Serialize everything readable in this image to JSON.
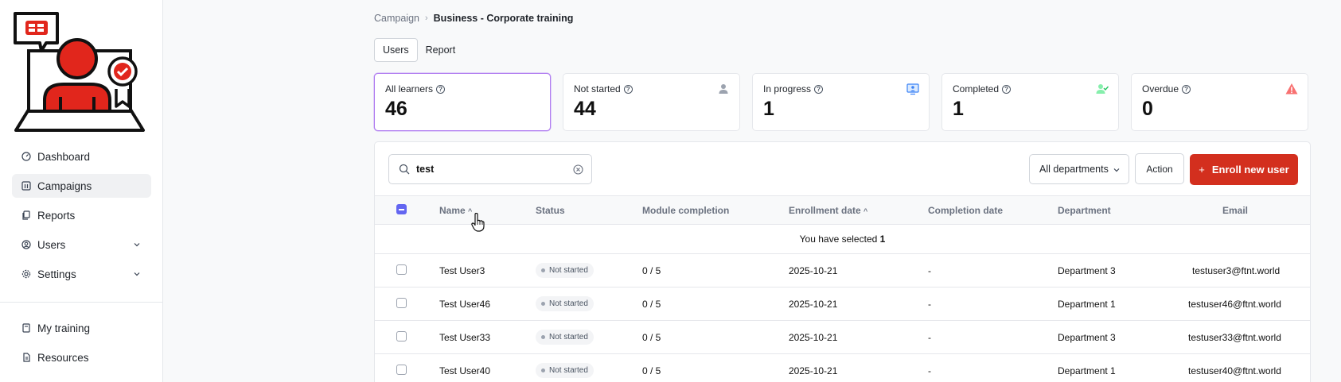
{
  "nav": {
    "items": [
      {
        "label": "Dashboard",
        "icon": "gauge-icon",
        "active": false
      },
      {
        "label": "Campaigns",
        "icon": "grid-icon",
        "active": true
      },
      {
        "label": "Reports",
        "icon": "document-icon",
        "active": false
      },
      {
        "label": "Users",
        "icon": "user-circle-icon",
        "active": false,
        "expandable": true
      },
      {
        "label": "Settings",
        "icon": "gear-icon",
        "active": false,
        "expandable": true
      }
    ],
    "bottom_items": [
      {
        "label": "My training",
        "icon": "book-icon"
      },
      {
        "label": "Resources",
        "icon": "file-icon"
      }
    ]
  },
  "breadcrumb": {
    "parent": "Campaign",
    "current": "Business - Corporate training"
  },
  "tabs": [
    {
      "label": "Users",
      "active": true
    },
    {
      "label": "Report",
      "active": false
    }
  ],
  "cards": [
    {
      "label": "All learners",
      "value": "46",
      "icon": ""
    },
    {
      "label": "Not started",
      "value": "44",
      "icon": "person-icon",
      "color": "#9ca3af"
    },
    {
      "label": "In progress",
      "value": "1",
      "icon": "monitor-user-icon",
      "color": "#3b82f6"
    },
    {
      "label": "Completed",
      "value": "1",
      "icon": "user-check-icon",
      "color": "#22c55e"
    },
    {
      "label": "Overdue",
      "value": "0",
      "icon": "warning-icon",
      "color": "#ef4444"
    }
  ],
  "search": {
    "value": "test"
  },
  "filters": {
    "department": "All departments"
  },
  "buttons": {
    "action": "Action",
    "enroll": "Enroll new user",
    "enroll_icon": "+"
  },
  "table": {
    "columns": {
      "name": "Name",
      "status": "Status",
      "module": "Module completion",
      "enrollment": "Enrollment date",
      "completion": "Completion date",
      "department": "Department",
      "email": "Email"
    },
    "selection": {
      "prefix": "You have selected",
      "count": "1"
    },
    "rows": [
      {
        "name": "Test User3",
        "status": "Not started",
        "module": "0 / 5",
        "enrollment": "2025-10-21",
        "completion": "-",
        "department": "Department 3",
        "email": "testuser3@ftnt.world"
      },
      {
        "name": "Test User46",
        "status": "Not started",
        "module": "0 / 5",
        "enrollment": "2025-10-21",
        "completion": "-",
        "department": "Department 1",
        "email": "testuser46@ftnt.world"
      },
      {
        "name": "Test User33",
        "status": "Not started",
        "module": "0 / 5",
        "enrollment": "2025-10-21",
        "completion": "-",
        "department": "Department 3",
        "email": "testuser33@ftnt.world"
      },
      {
        "name": "Test User40",
        "status": "Not started",
        "module": "0 / 5",
        "enrollment": "2025-10-21",
        "completion": "-",
        "department": "Department 1",
        "email": "testuser40@ftnt.world"
      }
    ]
  },
  "colors": {
    "brand": "#e1261c",
    "enroll_button": "#d32f1e",
    "selected_card_border": "#b07cf0",
    "checkbox": "#6366f1"
  }
}
